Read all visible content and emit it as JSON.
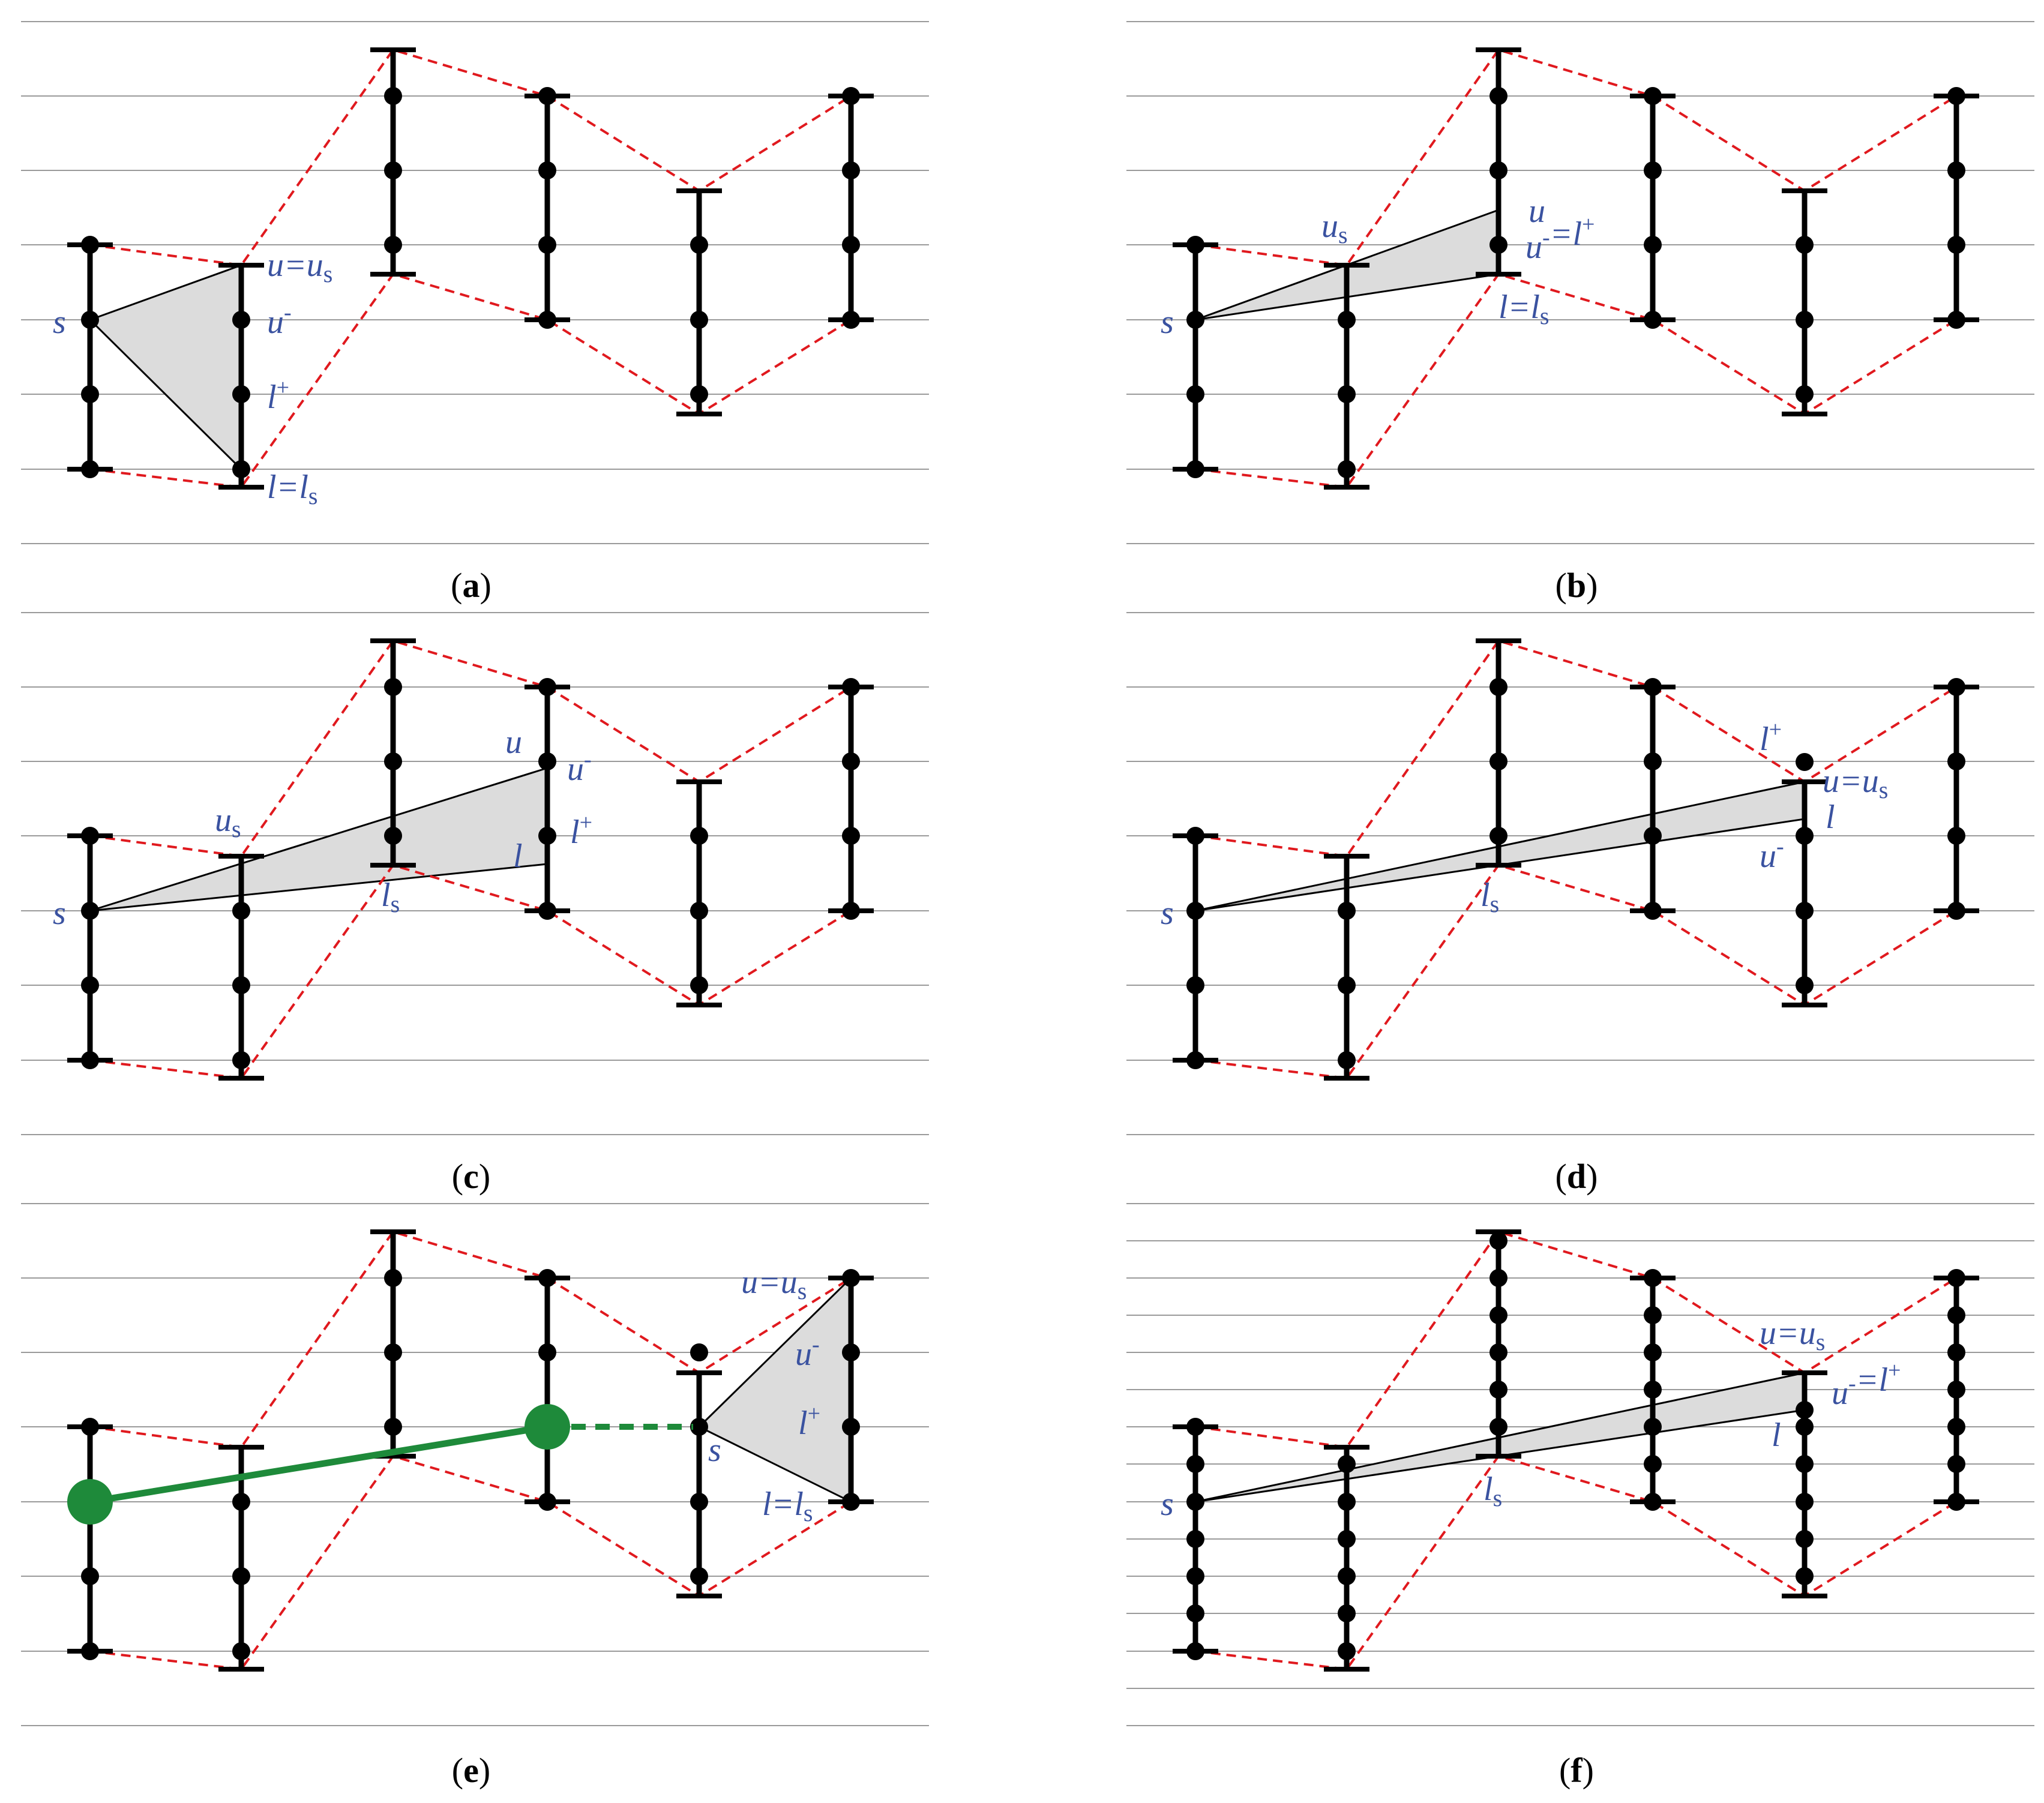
{
  "colors": {
    "bar": "#000000",
    "corridor": "#e0191e",
    "grid": "#9a9a9a",
    "cone_fill": "#dcdcdc",
    "cone_stroke": "#000000",
    "label": "#3a52a0",
    "segment": "#1e8a3a"
  },
  "panels": [
    {
      "id": "a",
      "label_open": "(",
      "label_letter": "a",
      "label_close": ")",
      "annotations": [
        {
          "key": "s",
          "main": "s",
          "sub": "",
          "sup": "",
          "rest": ""
        },
        {
          "key": "u_us",
          "main": "u=u",
          "sub": "s",
          "sup": "",
          "rest": ""
        },
        {
          "key": "u_minus",
          "main": "u",
          "sub": "",
          "sup": "-",
          "rest": ""
        },
        {
          "key": "l_plus",
          "main": "l",
          "sub": "",
          "sup": "+",
          "rest": ""
        },
        {
          "key": "l_ls",
          "main": "l=l",
          "sub": "s",
          "sup": "",
          "rest": ""
        }
      ]
    },
    {
      "id": "b",
      "label_open": "(",
      "label_letter": "b",
      "label_close": ")",
      "annotations": [
        {
          "key": "s",
          "main": "s",
          "sub": "",
          "sup": "",
          "rest": ""
        },
        {
          "key": "us",
          "main": "u",
          "sub": "s",
          "sup": "",
          "rest": ""
        },
        {
          "key": "u",
          "main": "u",
          "sub": "",
          "sup": "",
          "rest": ""
        },
        {
          "key": "um_lp",
          "main": "u",
          "sub": "",
          "sup": "-",
          "rest": "=l",
          "sup2": "+"
        },
        {
          "key": "l_ls",
          "main": "l=l",
          "sub": "s",
          "sup": "",
          "rest": ""
        }
      ]
    },
    {
      "id": "c",
      "label_open": "(",
      "label_letter": "c",
      "label_close": ")",
      "annotations": [
        {
          "key": "s",
          "main": "s",
          "sub": "",
          "sup": "",
          "rest": ""
        },
        {
          "key": "us",
          "main": "u",
          "sub": "s",
          "sup": "",
          "rest": ""
        },
        {
          "key": "u",
          "main": "u",
          "sub": "",
          "sup": "",
          "rest": ""
        },
        {
          "key": "u_minus",
          "main": "u",
          "sub": "",
          "sup": "-",
          "rest": ""
        },
        {
          "key": "l_plus",
          "main": "l",
          "sub": "",
          "sup": "+",
          "rest": ""
        },
        {
          "key": "l",
          "main": "l",
          "sub": "",
          "sup": "",
          "rest": ""
        },
        {
          "key": "ls",
          "main": "l",
          "sub": "s",
          "sup": "",
          "rest": ""
        }
      ]
    },
    {
      "id": "d",
      "label_open": "(",
      "label_letter": "d",
      "label_close": ")",
      "annotations": [
        {
          "key": "s",
          "main": "s",
          "sub": "",
          "sup": "",
          "rest": ""
        },
        {
          "key": "l_plus",
          "main": "l",
          "sub": "",
          "sup": "+",
          "rest": ""
        },
        {
          "key": "u_us",
          "main": "u=u",
          "sub": "s",
          "sup": "",
          "rest": ""
        },
        {
          "key": "l",
          "main": "l",
          "sub": "",
          "sup": "",
          "rest": ""
        },
        {
          "key": "u_minus",
          "main": "u",
          "sub": "",
          "sup": "-",
          "rest": ""
        },
        {
          "key": "ls",
          "main": "l",
          "sub": "s",
          "sup": "",
          "rest": ""
        }
      ]
    },
    {
      "id": "e",
      "label_open": "(",
      "label_letter": "e",
      "label_close": ")",
      "annotations": [
        {
          "key": "u_us",
          "main": "u=u",
          "sub": "s",
          "sup": "",
          "rest": ""
        },
        {
          "key": "u_minus",
          "main": "u",
          "sub": "",
          "sup": "-",
          "rest": ""
        },
        {
          "key": "s",
          "main": "s",
          "sub": "",
          "sup": "",
          "rest": ""
        },
        {
          "key": "l_plus",
          "main": "l",
          "sub": "",
          "sup": "+",
          "rest": ""
        },
        {
          "key": "l_ls",
          "main": "l=l",
          "sub": "s",
          "sup": "",
          "rest": ""
        }
      ]
    },
    {
      "id": "f",
      "label_open": "(",
      "label_letter": "f",
      "label_close": ")",
      "annotations": [
        {
          "key": "u_us",
          "main": "u=u",
          "sub": "s",
          "sup": "",
          "rest": ""
        },
        {
          "key": "um_lp",
          "main": "u",
          "sub": "",
          "sup": "-",
          "rest": "=l",
          "sup2": "+"
        },
        {
          "key": "l",
          "main": "l",
          "sub": "",
          "sup": "",
          "rest": ""
        },
        {
          "key": "s",
          "main": "s",
          "sub": "",
          "sup": "",
          "rest": ""
        },
        {
          "key": "ls",
          "main": "l",
          "sub": "s",
          "sup": "",
          "rest": ""
        }
      ]
    }
  ]
}
